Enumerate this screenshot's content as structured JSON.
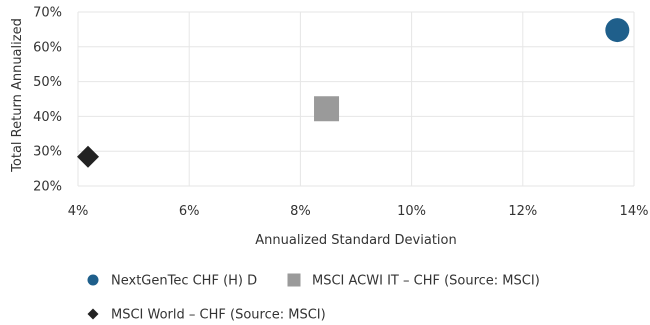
{
  "chart_data": {
    "type": "scatter",
    "xlabel": "Annualized Standard Deviation",
    "ylabel": "Total Return Annualized",
    "xlim": [
      0.04,
      0.14
    ],
    "ylim": [
      0.2,
      0.7
    ],
    "x_ticks": [
      0.04,
      0.06,
      0.08,
      0.1,
      0.12,
      0.14
    ],
    "y_ticks": [
      0.2,
      0.3,
      0.4,
      0.5,
      0.6,
      0.7
    ],
    "x_tick_labels": [
      "4%",
      "6%",
      "8%",
      "10%",
      "12%",
      "14%"
    ],
    "y_tick_labels": [
      "20%",
      "30%",
      "40%",
      "50%",
      "60%",
      "70%"
    ],
    "grid": true,
    "legend_position": "bottom",
    "series": [
      {
        "name": "NextGenTec CHF (H) D",
        "marker": "circle",
        "color": "#1f5f8b",
        "x": [
          0.137
        ],
        "y": [
          0.648
        ]
      },
      {
        "name": "MSCI ACWI IT – CHF (Source: MSCI)",
        "marker": "square",
        "color": "#9a9a9a",
        "x": [
          0.0847
        ],
        "y": [
          0.422
        ]
      },
      {
        "name": "MSCI World – CHF (Source: MSCI)",
        "marker": "diamond",
        "color": "#222222",
        "x": [
          0.0418
        ],
        "y": [
          0.284
        ]
      }
    ]
  }
}
